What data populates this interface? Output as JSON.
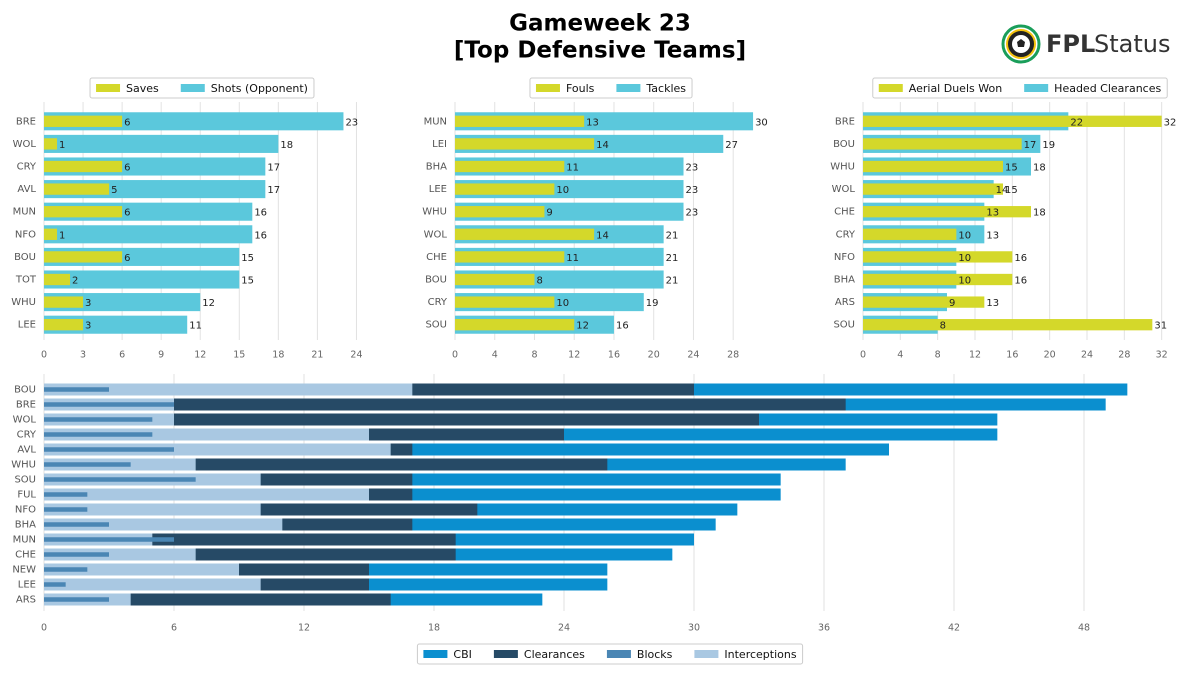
{
  "header": {
    "title": [
      "Gameweek 23",
      "[Top Defensive Teams]"
    ],
    "logo": [
      "FPL",
      "Status"
    ]
  },
  "chart_data": [
    {
      "type": "bar",
      "orientation": "horizontal",
      "overlap": true,
      "legend": "top",
      "data_labels": true,
      "grid": true,
      "categories": [
        "BRE",
        "WOL",
        "CRY",
        "AVL",
        "MUN",
        "NFO",
        "BOU",
        "TOT",
        "WHU",
        "LEE"
      ],
      "series": [
        {
          "name": "Saves",
          "color": "#d4d82a",
          "values": [
            6,
            1,
            6,
            5,
            6,
            1,
            6,
            2,
            3,
            3
          ]
        },
        {
          "name": "Shots (Opponent)",
          "color": "#5bc8dc",
          "values": [
            23,
            18,
            17,
            17,
            16,
            16,
            15,
            15,
            12,
            11
          ]
        }
      ],
      "xlim": [
        0,
        25.5
      ],
      "xticks": [
        0,
        3,
        6,
        9,
        12,
        15,
        18,
        21,
        24
      ]
    },
    {
      "type": "bar",
      "orientation": "horizontal",
      "overlap": true,
      "legend": "top",
      "data_labels": true,
      "grid": true,
      "categories": [
        "MUN",
        "LEI",
        "BHA",
        "LEE",
        "WHU",
        "WOL",
        "CHE",
        "BOU",
        "CRY",
        "SOU"
      ],
      "series": [
        {
          "name": "Fouls",
          "color": "#d4d82a",
          "values": [
            13,
            14,
            11,
            10,
            9,
            14,
            11,
            8,
            10,
            12
          ]
        },
        {
          "name": "Tackles",
          "color": "#5bc8dc",
          "values": [
            30,
            27,
            23,
            23,
            23,
            21,
            21,
            21,
            19,
            16
          ]
        }
      ],
      "xlim": [
        0,
        31
      ],
      "xticks": [
        0,
        4,
        8,
        12,
        16,
        20,
        24,
        28
      ]
    },
    {
      "type": "bar",
      "orientation": "horizontal",
      "overlap": true,
      "legend": "top",
      "data_labels": true,
      "grid": true,
      "categories": [
        "BRE",
        "BOU",
        "WHU",
        "WOL",
        "CHE",
        "CRY",
        "NFO",
        "BHA",
        "ARS",
        "SOU"
      ],
      "series": [
        {
          "name": "Aerial Duels Won",
          "color": "#d4d82a",
          "values": [
            32,
            17,
            15,
            15,
            18,
            10,
            16,
            16,
            13,
            31
          ]
        },
        {
          "name": "Headed Clearances",
          "color": "#5bc8dc",
          "values": [
            22,
            19,
            18,
            14,
            13,
            13,
            10,
            10,
            9,
            8
          ]
        }
      ],
      "xlim": [
        0,
        33
      ],
      "xticks": [
        0,
        4,
        8,
        12,
        16,
        20,
        24,
        28,
        32
      ]
    },
    {
      "type": "bar",
      "orientation": "horizontal",
      "overlap": true,
      "legend": "bottom",
      "data_labels": false,
      "grid": true,
      "categories": [
        "BOU",
        "BRE",
        "WOL",
        "CRY",
        "AVL",
        "WHU",
        "SOU",
        "FUL",
        "NFO",
        "BHA",
        "MUN",
        "CHE",
        "NEW",
        "LEE",
        "ARS"
      ],
      "series": [
        {
          "name": "CBI",
          "color": "#0b8fcf",
          "values": [
            50,
            49,
            44,
            44,
            39,
            37,
            34,
            34,
            32,
            31,
            30,
            29,
            26,
            26,
            23
          ]
        },
        {
          "name": "Clearances",
          "color": "#264a66",
          "values": [
            30,
            37,
            33,
            24,
            17,
            26,
            17,
            17,
            20,
            17,
            19,
            19,
            15,
            15,
            16
          ]
        },
        {
          "name": "Blocks",
          "color": "#4a86b4",
          "values": [
            3,
            6,
            5,
            5,
            6,
            4,
            7,
            2,
            2,
            3,
            6,
            3,
            2,
            1,
            3
          ]
        },
        {
          "name": "Interceptions",
          "color": "#a9c8e2",
          "values": [
            17,
            6,
            6,
            15,
            16,
            7,
            10,
            15,
            10,
            11,
            5,
            7,
            9,
            10,
            4
          ]
        }
      ],
      "xlim": [
        0,
        51
      ],
      "xticks": [
        0,
        6,
        12,
        18,
        24,
        30,
        36,
        42,
        48
      ]
    }
  ]
}
